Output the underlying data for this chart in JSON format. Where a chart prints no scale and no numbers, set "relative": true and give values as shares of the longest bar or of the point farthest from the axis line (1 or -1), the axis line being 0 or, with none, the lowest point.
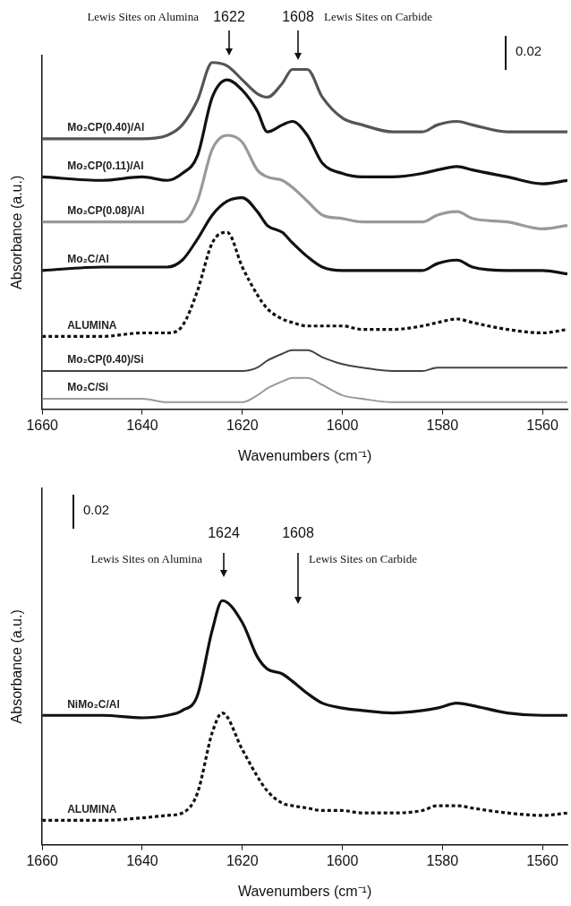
{
  "chart_data": [
    {
      "type": "line",
      "relative": true,
      "xlabel": "Wavenumbers (cm⁻¹)",
      "ylabel": "Absorbance (a.u.)",
      "x": [
        1660,
        1648,
        1640,
        1635,
        1632,
        1629,
        1626,
        1623,
        1620,
        1617,
        1615,
        1612,
        1610,
        1607,
        1604,
        1600,
        1596,
        1590,
        1584,
        1581,
        1577,
        1574,
        1567,
        1560,
        1555
      ],
      "xlim": [
        1660,
        1555
      ],
      "xticks": [
        1660,
        1640,
        1620,
        1600,
        1580,
        1560
      ],
      "tick_labels": "x",
      "grid": false,
      "legend": false,
      "marker": "none",
      "annotations": [
        "Lewis Sites on Alumina",
        "Lewis Sites on Carbide",
        "0.02",
        "1622",
        "1608"
      ],
      "series": [
        {
          "name": "Mo₂CP(0.40)/Al",
          "color": "#555555",
          "line_style": "solid",
          "values": [
            0.78,
            0.78,
            0.78,
            0.79,
            0.82,
            0.89,
            1.0,
            0.99,
            0.95,
            0.91,
            0.9,
            0.94,
            0.98,
            0.98,
            0.9,
            0.84,
            0.82,
            0.8,
            0.8,
            0.82,
            0.83,
            0.82,
            0.8,
            0.8,
            0.8
          ]
        },
        {
          "name": "Mo₂CP(0.11)/Al",
          "color": "#111111",
          "line_style": "solid",
          "values": [
            0.67,
            0.66,
            0.67,
            0.66,
            0.68,
            0.73,
            0.9,
            0.95,
            0.92,
            0.86,
            0.8,
            0.82,
            0.83,
            0.79,
            0.71,
            0.68,
            0.67,
            0.67,
            0.68,
            0.69,
            0.7,
            0.69,
            0.67,
            0.65,
            0.66
          ]
        },
        {
          "name": "Mo₂CP(0.08)/Al",
          "color": "#999999",
          "line_style": "solid",
          "values": [
            0.54,
            0.54,
            0.54,
            0.54,
            0.54,
            0.6,
            0.75,
            0.79,
            0.77,
            0.69,
            0.67,
            0.66,
            0.64,
            0.6,
            0.56,
            0.55,
            0.54,
            0.54,
            0.54,
            0.56,
            0.57,
            0.55,
            0.54,
            0.52,
            0.53
          ]
        },
        {
          "name": "Mo₂C/Al",
          "color": "#111111",
          "line_style": "solid",
          "values": [
            0.4,
            0.41,
            0.41,
            0.41,
            0.43,
            0.49,
            0.56,
            0.6,
            0.61,
            0.57,
            0.53,
            0.51,
            0.48,
            0.44,
            0.41,
            0.4,
            0.4,
            0.4,
            0.4,
            0.42,
            0.43,
            0.41,
            0.4,
            0.4,
            0.39
          ]
        },
        {
          "name": "ALUMINA",
          "color": "#111111",
          "line_style": "dashed",
          "values": [
            0.21,
            0.21,
            0.22,
            0.22,
            0.24,
            0.34,
            0.48,
            0.51,
            0.41,
            0.33,
            0.29,
            0.26,
            0.25,
            0.24,
            0.24,
            0.24,
            0.23,
            0.23,
            0.24,
            0.25,
            0.26,
            0.25,
            0.23,
            0.22,
            0.23
          ]
        },
        {
          "name": "Mo₂CP(0.40)/Si",
          "color": "#444444",
          "line_style": "solid",
          "values": [
            0.11,
            0.11,
            0.11,
            0.11,
            0.11,
            0.11,
            0.11,
            0.11,
            0.11,
            0.12,
            0.14,
            0.16,
            0.17,
            0.17,
            0.15,
            0.13,
            0.12,
            0.11,
            0.11,
            0.12,
            0.12,
            0.12,
            0.12,
            0.12,
            0.12
          ]
        },
        {
          "name": "Mo₂C/Si",
          "color": "#999999",
          "line_style": "solid",
          "values": [
            0.03,
            0.03,
            0.03,
            0.02,
            0.02,
            0.02,
            0.02,
            0.02,
            0.02,
            0.04,
            0.06,
            0.08,
            0.09,
            0.09,
            0.07,
            0.04,
            0.03,
            0.02,
            0.02,
            0.02,
            0.02,
            0.02,
            0.02,
            0.02,
            0.02
          ]
        }
      ]
    },
    {
      "type": "line",
      "relative": true,
      "xlabel": "Wavenumbers (cm⁻¹)",
      "ylabel": "Absorbance (a.u.)",
      "x": [
        1660,
        1648,
        1640,
        1635,
        1632,
        1629,
        1626,
        1624,
        1620,
        1617,
        1615,
        1612,
        1610,
        1607,
        1604,
        1600,
        1596,
        1590,
        1584,
        1581,
        1577,
        1574,
        1567,
        1560,
        1555
      ],
      "xlim": [
        1660,
        1555
      ],
      "xticks": [
        1660,
        1640,
        1620,
        1600,
        1580,
        1560
      ],
      "tick_labels": "x",
      "grid": false,
      "legend": false,
      "marker": "none",
      "annotations": [
        "Lewis Sites on Alumina",
        "Lewis Sites on Carbide",
        "0.02",
        "1624",
        "1608"
      ],
      "series": [
        {
          "name": "NiMo₂C/Al",
          "color": "#111111",
          "line_style": "solid",
          "values": [
            0.53,
            0.53,
            0.52,
            0.53,
            0.55,
            0.61,
            0.88,
            1.0,
            0.91,
            0.77,
            0.72,
            0.7,
            0.67,
            0.62,
            0.58,
            0.56,
            0.55,
            0.54,
            0.55,
            0.56,
            0.58,
            0.57,
            0.54,
            0.53,
            0.53
          ]
        },
        {
          "name": "ALUMINA",
          "color": "#111111",
          "line_style": "dashed",
          "values": [
            0.1,
            0.1,
            0.11,
            0.12,
            0.13,
            0.21,
            0.46,
            0.54,
            0.39,
            0.28,
            0.22,
            0.17,
            0.16,
            0.15,
            0.14,
            0.14,
            0.13,
            0.13,
            0.14,
            0.16,
            0.16,
            0.15,
            0.13,
            0.12,
            0.13
          ]
        }
      ]
    }
  ]
}
